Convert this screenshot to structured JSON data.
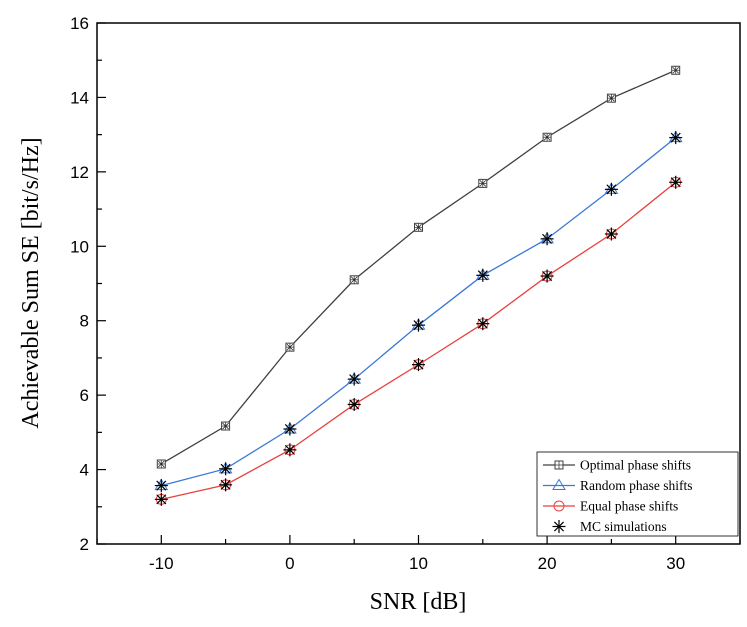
{
  "chart_data": {
    "type": "line",
    "title": "",
    "xlabel": "SNR [dB]",
    "ylabel": "Achievable Sum SE [bit/s/Hz]",
    "xlim": [
      -15,
      35
    ],
    "ylim": [
      2,
      16
    ],
    "xticks": [
      -10,
      0,
      10,
      20,
      30
    ],
    "xtick_labels": [
      "-10",
      "0",
      "10",
      "20",
      "30"
    ],
    "yticks": [
      2,
      4,
      6,
      8,
      10,
      12,
      14,
      16
    ],
    "ytick_labels": [
      "2",
      "4",
      "6",
      "8",
      "10",
      "12",
      "14",
      "16"
    ],
    "x": [
      -10,
      -5,
      0,
      5,
      10,
      15,
      20,
      25,
      30
    ],
    "series": [
      {
        "name": "Optimal phase shifts",
        "marker": "square",
        "color": "#404040",
        "values": [
          4.15,
          5.17,
          7.29,
          9.1,
          10.51,
          11.69,
          12.93,
          13.98,
          14.73
        ]
      },
      {
        "name": "Random phase shifts",
        "marker": "triangle",
        "color": "#3a78d6",
        "values": [
          3.57,
          4.02,
          5.09,
          6.43,
          7.88,
          9.22,
          10.2,
          11.53,
          12.92
        ]
      },
      {
        "name": "Equal phase shifts",
        "marker": "circle",
        "color": "#e8413f",
        "values": [
          3.2,
          3.59,
          4.53,
          5.75,
          6.82,
          7.92,
          9.2,
          10.33,
          11.72
        ]
      }
    ],
    "mc_simulations": {
      "name": "MC simulations",
      "marker": "asterisk",
      "color": "#000000"
    },
    "legend_position": "bottom-right",
    "grid": false
  }
}
